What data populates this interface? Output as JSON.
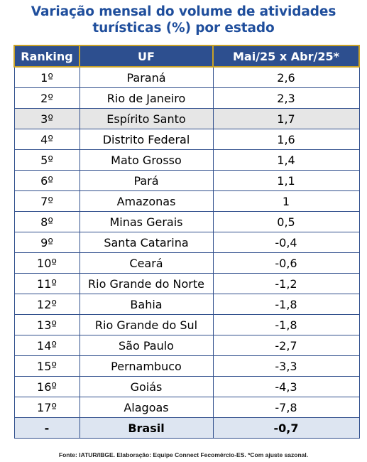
{
  "title": {
    "line1": "Variação mensal do volume de atividades",
    "line2": "turísticas (%) por estado"
  },
  "chart_data": {
    "type": "table",
    "columns": [
      "Ranking",
      "UF",
      "Mai/25 x Abr/25*"
    ],
    "rows": [
      {
        "rank": "1º",
        "uf": "Paraná",
        "value": "2,6"
      },
      {
        "rank": "2º",
        "uf": "Rio de Janeiro",
        "value": "2,3"
      },
      {
        "rank": "3º",
        "uf": "Espírito Santo",
        "value": "1,7"
      },
      {
        "rank": "4º",
        "uf": "Distrito Federal",
        "value": "1,6"
      },
      {
        "rank": "5º",
        "uf": "Mato Grosso",
        "value": "1,4"
      },
      {
        "rank": "6º",
        "uf": "Pará",
        "value": "1,1"
      },
      {
        "rank": "7º",
        "uf": "Amazonas",
        "value": "1"
      },
      {
        "rank": "8º",
        "uf": "Minas Gerais",
        "value": "0,5"
      },
      {
        "rank": "9º",
        "uf": "Santa Catarina",
        "value": "-0,4"
      },
      {
        "rank": "10º",
        "uf": "Ceará",
        "value": "-0,6"
      },
      {
        "rank": "11º",
        "uf": "Rio Grande do Norte",
        "value": "-1,2"
      },
      {
        "rank": "12º",
        "uf": "Bahia",
        "value": "-1,8"
      },
      {
        "rank": "13º",
        "uf": "Rio Grande do Sul",
        "value": "-1,8"
      },
      {
        "rank": "14º",
        "uf": "São Paulo",
        "value": "-2,7"
      },
      {
        "rank": "15º",
        "uf": "Pernambuco",
        "value": "-3,3"
      },
      {
        "rank": "16º",
        "uf": "Goiás",
        "value": "-4,3"
      },
      {
        "rank": "17º",
        "uf": "Alagoas",
        "value": "-7,8"
      }
    ],
    "total": {
      "rank": "-",
      "uf": "Brasil",
      "value": "-0,7"
    },
    "highlighted_uf": "Espírito Santo"
  },
  "colors": {
    "title": "#1f4e9c",
    "header_bg": "#2d4f8f",
    "header_border": "#c9a227",
    "highlight_row": "#e6e6e6",
    "total_row": "#dde5f1",
    "grid": "#2f4e8c"
  },
  "source": "Fonte: IATUR/IBGE. Elaboração: Equipe Connect Fecomércio-ES. *Com ajuste sazonal."
}
